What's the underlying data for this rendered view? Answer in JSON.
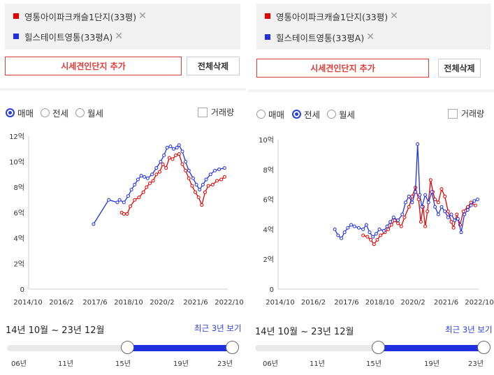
{
  "colors": {
    "red": "#e30000",
    "blue": "#2030e0",
    "accent": "#2a3fe0",
    "add_border": "#e53935"
  },
  "left": {
    "legend": [
      {
        "name": "영통아이파크캐슬1단지(33평)",
        "color": "#e30000"
      },
      {
        "name": "힐스테이트영통(33평A)",
        "color": "#2030e0"
      }
    ],
    "add_label": "시세견인단지 추가",
    "delete_label": "전체삭제",
    "radios": [
      "매매",
      "전세",
      "월세"
    ],
    "selected_radio": "매매",
    "volume_label": "거래량",
    "range_text": "14년 10월 ~ 23년 12월",
    "recent_label": "최근 3년 보기",
    "slider_years": [
      "06년",
      "11년",
      "15년",
      "19년",
      "23년"
    ],
    "chart_data": {
      "type": "line",
      "y_ticks": [
        "0",
        "2억",
        "4억",
        "6억",
        "8억",
        "10억",
        "12억"
      ],
      "ylim": [
        0,
        12
      ],
      "x_ticks": [
        "2014/10",
        "2016/2",
        "2017/6",
        "2018/10",
        "2020/2",
        "2021/6",
        "2022/10"
      ],
      "xlim": [
        2014.8,
        2024.0
      ],
      "series": [
        {
          "color": "#e30000",
          "points": [
            [
              2019.1,
              6
            ],
            [
              2019.2,
              5.9
            ],
            [
              2019.35,
              5.9
            ],
            [
              2019.5,
              6.5
            ],
            [
              2019.7,
              7
            ],
            [
              2019.9,
              7.2
            ],
            [
              2020.1,
              7.6
            ],
            [
              2020.25,
              8
            ],
            [
              2020.4,
              8.3
            ],
            [
              2020.55,
              8.5
            ],
            [
              2020.7,
              9
            ],
            [
              2020.85,
              9.2
            ],
            [
              2021.0,
              9.8
            ],
            [
              2021.15,
              9.5
            ],
            [
              2021.3,
              10.3
            ],
            [
              2021.45,
              10.2
            ],
            [
              2021.6,
              10.5
            ],
            [
              2021.75,
              10.6
            ],
            [
              2021.9,
              9.8
            ],
            [
              2022.05,
              9.3
            ],
            [
              2022.2,
              8.7
            ],
            [
              2022.35,
              8.1
            ],
            [
              2022.5,
              7.6
            ],
            [
              2022.65,
              7.2
            ],
            [
              2022.8,
              6.6
            ],
            [
              2022.95,
              7.6
            ],
            [
              2023.1,
              8.1
            ],
            [
              2023.3,
              8.2
            ],
            [
              2023.5,
              8.5
            ],
            [
              2023.7,
              8.6
            ],
            [
              2023.85,
              8.8
            ]
          ]
        },
        {
          "color": "#2030e0",
          "points": [
            [
              2017.8,
              5.1
            ],
            [
              2018.5,
              7.0
            ],
            [
              2018.9,
              6.8
            ],
            [
              2019.0,
              7.0
            ],
            [
              2019.2,
              6.8
            ],
            [
              2019.4,
              7.3
            ],
            [
              2019.55,
              7.8
            ],
            [
              2019.7,
              8.2
            ],
            [
              2019.85,
              8.6
            ],
            [
              2020.0,
              8.9
            ],
            [
              2020.15,
              8.8
            ],
            [
              2020.3,
              8.7
            ],
            [
              2020.5,
              9.0
            ],
            [
              2020.7,
              9.5
            ],
            [
              2020.9,
              10.0
            ],
            [
              2021.05,
              10.5
            ],
            [
              2021.2,
              11.1
            ],
            [
              2021.35,
              11.2
            ],
            [
              2021.5,
              11.0
            ],
            [
              2021.65,
              11.1
            ],
            [
              2021.75,
              11.3
            ],
            [
              2021.9,
              10.8
            ],
            [
              2022.05,
              10.0
            ],
            [
              2022.2,
              9.3
            ],
            [
              2022.4,
              8.7
            ],
            [
              2022.55,
              8.2
            ],
            [
              2022.7,
              7.8
            ],
            [
              2022.85,
              8.2
            ],
            [
              2023.0,
              8.6
            ],
            [
              2023.2,
              9.0
            ],
            [
              2023.4,
              9.3
            ],
            [
              2023.6,
              9.4
            ],
            [
              2023.85,
              9.5
            ]
          ]
        }
      ]
    }
  },
  "right": {
    "legend": [
      {
        "name": "영통아이파크캐슬1단지(33평)",
        "color": "#e30000"
      },
      {
        "name": "힐스테이트영통(33평A)",
        "color": "#2030e0"
      }
    ],
    "add_label": "시세견인단지 추가",
    "delete_label": "전체삭제",
    "radios": [
      "매매",
      "전세",
      "월세"
    ],
    "selected_radio": "전세",
    "volume_label": "거래량",
    "range_text": "14년 10월 ~ 23년 12월",
    "recent_label": "최근 3년 보기",
    "slider_years": [
      "06년",
      "11년",
      "15년",
      "19년",
      "23년"
    ],
    "chart_data": {
      "type": "line",
      "y_ticks": [
        "0",
        "2억",
        "4억",
        "6억",
        "8억",
        "10억"
      ],
      "ylim": [
        0,
        10
      ],
      "x_ticks": [
        "2014/10",
        "2016/2",
        "2017/6",
        "2018/10",
        "2020/2",
        "2021/6",
        "2022/10"
      ],
      "xlim": [
        2014.8,
        2024.0
      ],
      "series": [
        {
          "color": "#e30000",
          "points": [
            [
              2018.7,
              3.6
            ],
            [
              2018.9,
              3.5
            ],
            [
              2019.05,
              3.3
            ],
            [
              2019.2,
              3.0
            ],
            [
              2019.35,
              3.3
            ],
            [
              2019.5,
              3.6
            ],
            [
              2019.7,
              3.8
            ],
            [
              2019.85,
              4.0
            ],
            [
              2020.0,
              4.3
            ],
            [
              2020.15,
              4.6
            ],
            [
              2020.3,
              4.4
            ],
            [
              2020.45,
              4.2
            ],
            [
              2020.6,
              4.8
            ],
            [
              2020.8,
              5.5
            ],
            [
              2020.95,
              6.2
            ],
            [
              2021.1,
              6.8
            ],
            [
              2021.25,
              6.0
            ],
            [
              2021.35,
              4.5
            ],
            [
              2021.45,
              5.5
            ],
            [
              2021.55,
              4.2
            ],
            [
              2021.65,
              5.2
            ],
            [
              2021.8,
              7.3
            ],
            [
              2021.9,
              6.5
            ],
            [
              2022.0,
              6.0
            ],
            [
              2022.15,
              5.8
            ],
            [
              2022.3,
              6.7
            ],
            [
              2022.45,
              6.2
            ],
            [
              2022.6,
              5.2
            ],
            [
              2022.75,
              4.5
            ],
            [
              2022.85,
              4.1
            ],
            [
              2023.0,
              5.0
            ],
            [
              2023.15,
              4.3
            ],
            [
              2023.3,
              5.2
            ],
            [
              2023.5,
              5.5
            ],
            [
              2023.65,
              5.8
            ],
            [
              2023.85,
              5.6
            ]
          ]
        },
        {
          "color": "#2030e0",
          "points": [
            [
              2017.4,
              4.0
            ],
            [
              2017.55,
              3.6
            ],
            [
              2017.7,
              3.4
            ],
            [
              2017.85,
              3.8
            ],
            [
              2018.0,
              4.1
            ],
            [
              2018.15,
              4.3
            ],
            [
              2018.3,
              4.2
            ],
            [
              2018.5,
              4.1
            ],
            [
              2018.7,
              4.0
            ],
            [
              2018.85,
              4.3
            ],
            [
              2019.0,
              3.8
            ],
            [
              2019.15,
              3.5
            ],
            [
              2019.3,
              3.7
            ],
            [
              2019.45,
              4.0
            ],
            [
              2019.65,
              3.9
            ],
            [
              2019.8,
              4.2
            ],
            [
              2019.95,
              4.5
            ],
            [
              2020.1,
              4.8
            ],
            [
              2020.3,
              4.6
            ],
            [
              2020.5,
              5.0
            ],
            [
              2020.65,
              5.8
            ],
            [
              2020.8,
              6.2
            ],
            [
              2020.95,
              5.8
            ],
            [
              2021.1,
              6.5
            ],
            [
              2021.2,
              9.7
            ],
            [
              2021.3,
              6.3
            ],
            [
              2021.4,
              5.5
            ],
            [
              2021.55,
              6.3
            ],
            [
              2021.7,
              5.8
            ],
            [
              2021.85,
              6.5
            ],
            [
              2022.0,
              5.5
            ],
            [
              2022.15,
              5.0
            ],
            [
              2022.3,
              5.5
            ],
            [
              2022.45,
              5.2
            ],
            [
              2022.6,
              4.8
            ],
            [
              2022.75,
              5.0
            ],
            [
              2022.9,
              4.6
            ],
            [
              2023.05,
              4.7
            ],
            [
              2023.2,
              3.8
            ],
            [
              2023.35,
              5.0
            ],
            [
              2023.5,
              5.3
            ],
            [
              2023.65,
              5.6
            ],
            [
              2023.8,
              5.9
            ],
            [
              2023.95,
              6.0
            ]
          ]
        }
      ]
    }
  }
}
